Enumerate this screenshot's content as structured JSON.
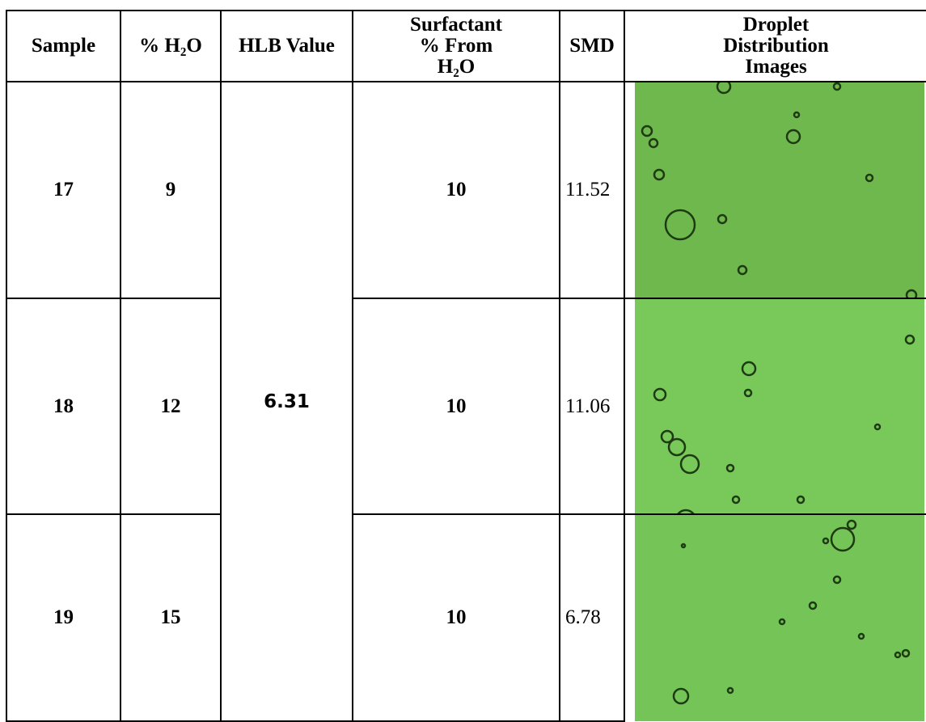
{
  "table": {
    "header": [
      "Sample",
      "% H₂O",
      "HLB Value",
      "Surfactant % From H₂O",
      "SMD",
      "Droplet Distribution Images"
    ],
    "hlb_value": 6.31,
    "rows": [
      {
        "sample": 17,
        "water": 9,
        "surfactant": 10,
        "smd": 11.52
      },
      {
        "sample": 18,
        "water": 12,
        "surfactant": 10,
        "smd": 11.06
      },
      {
        "sample": 19,
        "water": 15,
        "surfactant": 10,
        "smd": 6.78
      }
    ]
  }
}
